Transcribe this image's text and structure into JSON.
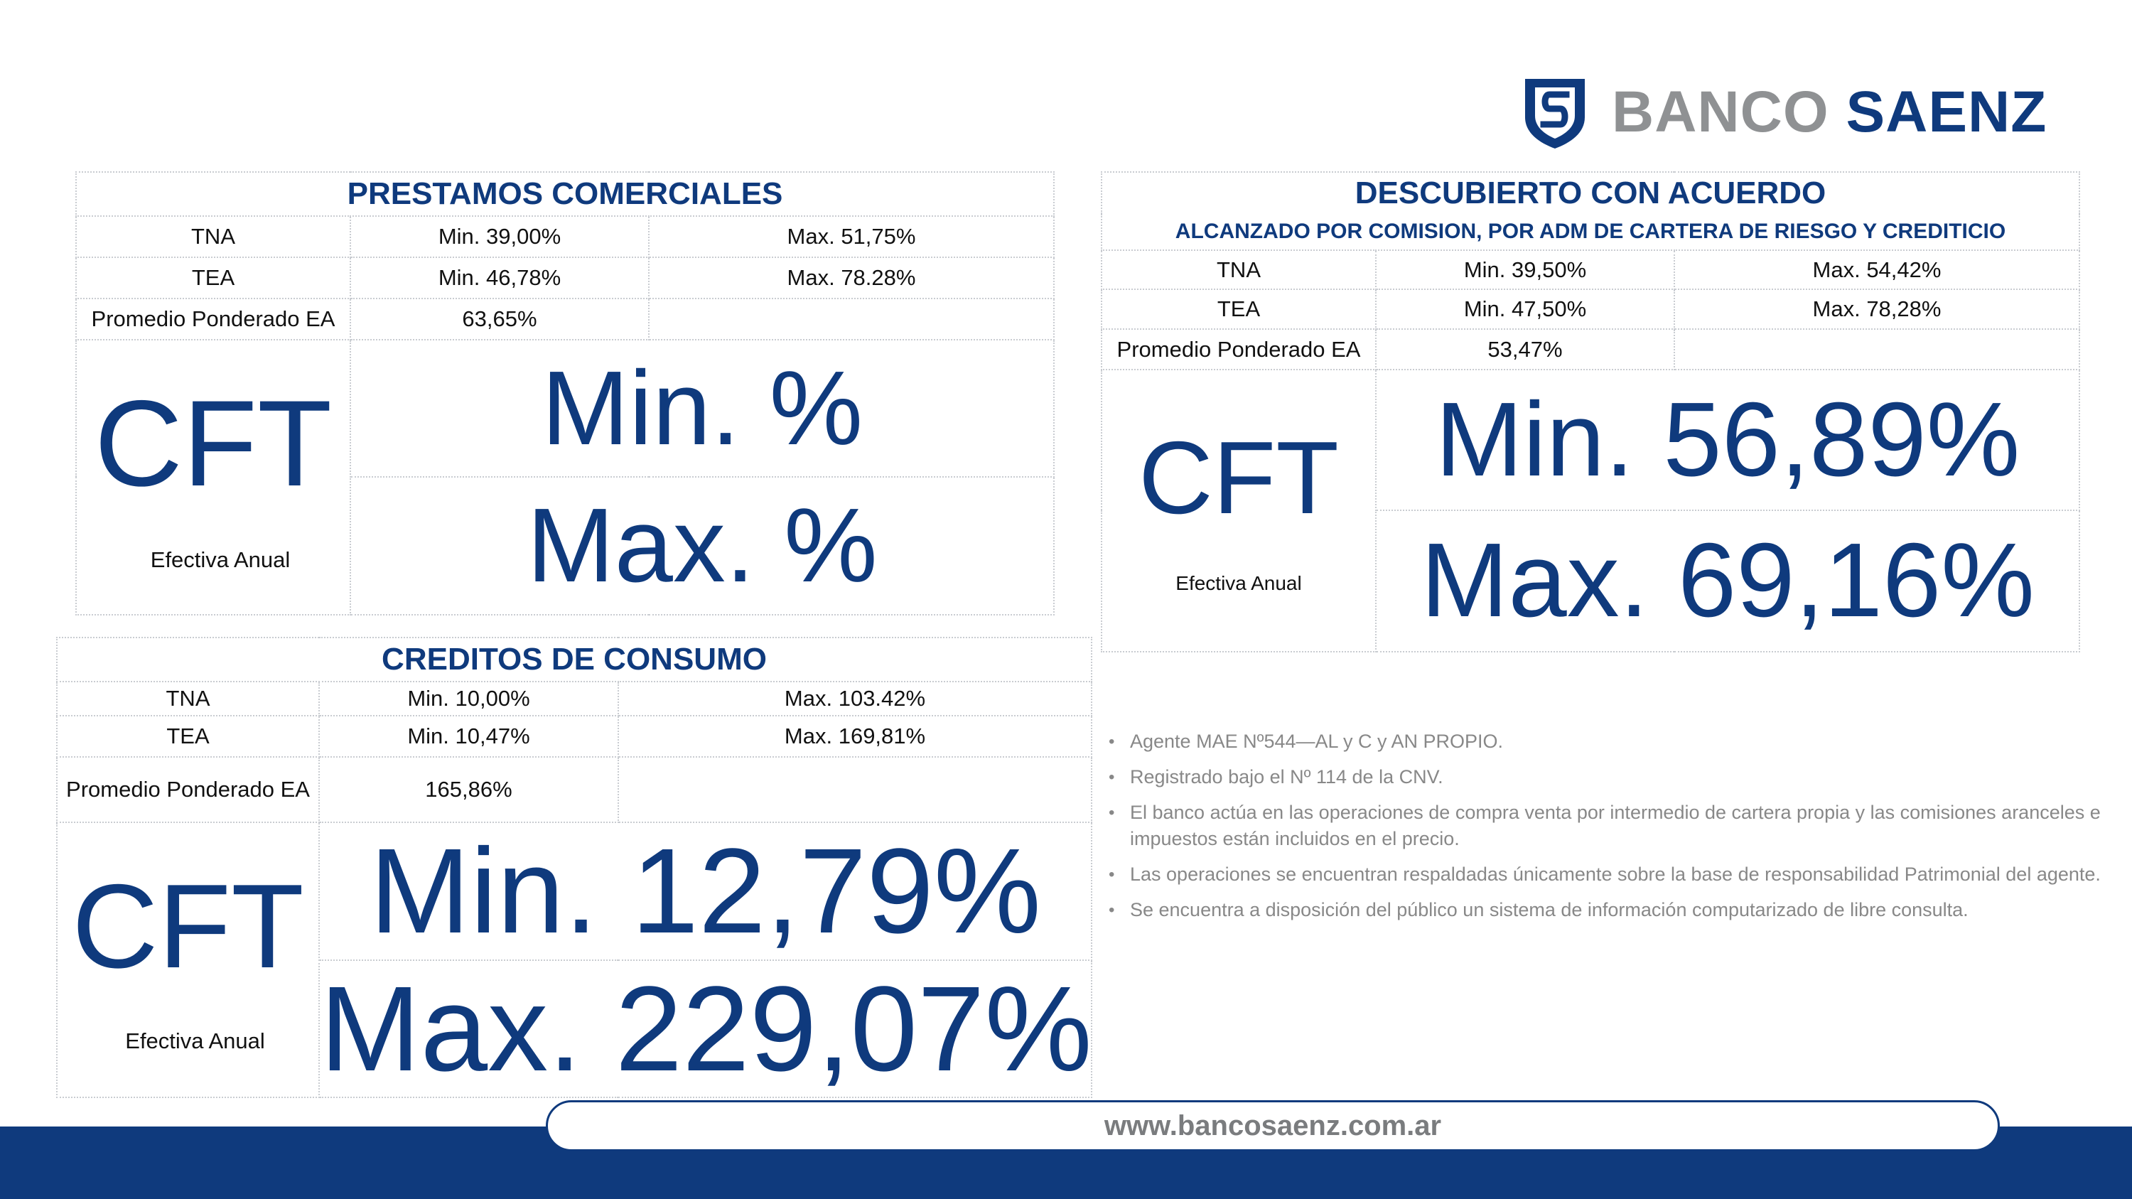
{
  "brand": {
    "word1": "BANCO",
    "word2": "SAENZ",
    "primary_color": "#0f3a7d",
    "gray_color": "#8f9193",
    "logo_icon": "shield-s-icon"
  },
  "prestamos": {
    "title": "PRESTAMOS COMERCIALES",
    "rows": [
      {
        "label": "TNA",
        "min": "Min. 39,00%",
        "max": "Max. 51,75%"
      },
      {
        "label": "TEA",
        "min": "Min. 46,78%",
        "max": "Max. 78.28%"
      }
    ],
    "promedio_label": "Promedio Ponderado EA",
    "promedio_value": "63,65%",
    "cft_label": "CFT",
    "cft_sub": "Efectiva Anual",
    "cft_min": "Min. %",
    "cft_max": "Max. %"
  },
  "creditos": {
    "title": "CREDITOS DE CONSUMO",
    "rows": [
      {
        "label": "TNA",
        "min": "Min. 10,00%",
        "max": "Max. 103.42%"
      },
      {
        "label": "TEA",
        "min": "Min. 10,47%",
        "max": "Max. 169,81%"
      }
    ],
    "promedio_label": "Promedio Ponderado EA",
    "promedio_value": "165,86%",
    "cft_label": "CFT",
    "cft_sub": "Efectiva Anual",
    "cft_min": "Min. 12,79%",
    "cft_max": "Max. 229,07%"
  },
  "descubierto": {
    "title": "DESCUBIERTO CON ACUERDO",
    "subtitle": "ALCANZADO POR COMISION, POR ADM DE CARTERA DE RIESGO Y CREDITICIO",
    "rows": [
      {
        "label": "TNA",
        "min": "Min. 39,50%",
        "max": "Max. 54,42%"
      },
      {
        "label": "TEA",
        "min": "Min. 47,50%",
        "max": "Max. 78,28%"
      }
    ],
    "promedio_label": "Promedio Ponderado EA",
    "promedio_value": "53,47%",
    "cft_label": "CFT",
    "cft_sub": "Efectiva Anual",
    "cft_min": "Min. 56,89%",
    "cft_max": "Max. 69,16%"
  },
  "notes": [
    "Agente MAE Nº544—AL y C y AN PROPIO.",
    "Registrado bajo el Nº 114 de la CNV.",
    "El banco actúa en las operaciones de compra venta por intermedio de cartera propia y las comisiones aranceles e impuestos están incluidos en el precio.",
    "Las operaciones se encuentran respaldadas únicamente sobre la base de responsabilidad Patrimonial del agente.",
    "Se encuentra a disposición del público un sistema de información  computarizado de libre consulta."
  ],
  "footer": {
    "url": "www.bancosaenz.com.ar"
  }
}
